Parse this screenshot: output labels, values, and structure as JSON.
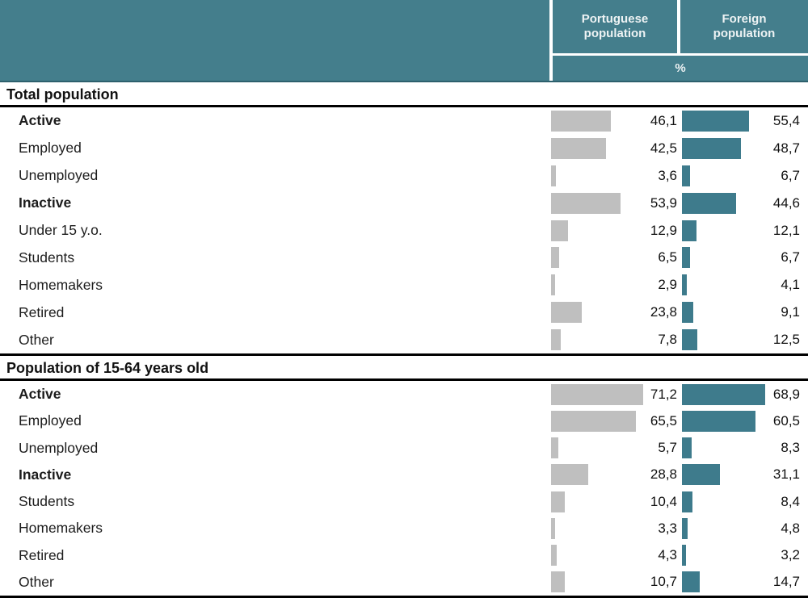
{
  "header": {
    "columns": [
      "Portuguese population",
      "Foreign population"
    ],
    "unit": "%"
  },
  "colors": {
    "header_teal": "#447e8c",
    "bar_teal": "#3e7b8c",
    "bar_gray": "#bfbfbf",
    "rule_black": "#000000"
  },
  "sections": [
    {
      "title": "Total population",
      "rows": [
        {
          "label": "Active",
          "bold": true,
          "portuguese": "46,1",
          "foreign": "55,4"
        },
        {
          "label": "Employed",
          "bold": false,
          "portuguese": "42,5",
          "foreign": "48,7"
        },
        {
          "label": "Unemployed",
          "bold": false,
          "portuguese": "3,6",
          "foreign": "6,7"
        },
        {
          "label": "Inactive",
          "bold": true,
          "portuguese": "53,9",
          "foreign": "44,6"
        },
        {
          "label": "Under 15 y.o.",
          "bold": false,
          "portuguese": "12,9",
          "foreign": "12,1"
        },
        {
          "label": "Students",
          "bold": false,
          "portuguese": "6,5",
          "foreign": "6,7"
        },
        {
          "label": "Homemakers",
          "bold": false,
          "portuguese": "2,9",
          "foreign": "4,1"
        },
        {
          "label": "Retired",
          "bold": false,
          "portuguese": "23,8",
          "foreign": "9,1"
        },
        {
          "label": "Other",
          "bold": false,
          "portuguese": "7,8",
          "foreign": "12,5"
        }
      ]
    },
    {
      "title": "Population of 15-64 years old",
      "rows": [
        {
          "label": "Active",
          "bold": true,
          "portuguese": "71,2",
          "foreign": "68,9"
        },
        {
          "label": "Employed",
          "bold": false,
          "portuguese": "65,5",
          "foreign": "60,5"
        },
        {
          "label": "Unemployed",
          "bold": false,
          "portuguese": "5,7",
          "foreign": "8,3"
        },
        {
          "label": "Inactive",
          "bold": true,
          "portuguese": "28,8",
          "foreign": "31,1"
        },
        {
          "label": "Students",
          "bold": false,
          "portuguese": "10,4",
          "foreign": "8,4"
        },
        {
          "label": "Homemakers",
          "bold": false,
          "portuguese": "3,3",
          "foreign": "4,8"
        },
        {
          "label": "Retired",
          "bold": false,
          "portuguese": "4,3",
          "foreign": "3,2"
        },
        {
          "label": "Other",
          "bold": false,
          "portuguese": "10,7",
          "foreign": "14,7"
        }
      ]
    }
  ],
  "chart_data": [
    {
      "type": "bar",
      "title": "Total population",
      "unit": "%",
      "categories": [
        "Active",
        "Employed",
        "Unemployed",
        "Inactive",
        "Under 15 y.o.",
        "Students",
        "Homemakers",
        "Retired",
        "Other"
      ],
      "series": [
        {
          "name": "Portuguese population",
          "values": [
            46.1,
            42.5,
            3.6,
            53.9,
            12.9,
            6.5,
            2.9,
            23.8,
            7.8
          ]
        },
        {
          "name": "Foreign population",
          "values": [
            55.4,
            48.7,
            6.7,
            44.6,
            12.1,
            6.7,
            4.1,
            9.1,
            12.5
          ]
        }
      ],
      "xlim": [
        0,
        100
      ],
      "legend_position": "column headers",
      "grid": false
    },
    {
      "type": "bar",
      "title": "Population of 15-64 years old",
      "unit": "%",
      "categories": [
        "Active",
        "Employed",
        "Unemployed",
        "Inactive",
        "Students",
        "Homemakers",
        "Retired",
        "Other"
      ],
      "series": [
        {
          "name": "Portuguese population",
          "values": [
            71.2,
            65.5,
            5.7,
            28.8,
            10.4,
            3.3,
            4.3,
            10.7
          ]
        },
        {
          "name": "Foreign population",
          "values": [
            68.9,
            60.5,
            8.3,
            31.1,
            8.4,
            4.8,
            3.2,
            14.7
          ]
        }
      ],
      "xlim": [
        0,
        100
      ],
      "legend_position": "column headers",
      "grid": false
    }
  ]
}
